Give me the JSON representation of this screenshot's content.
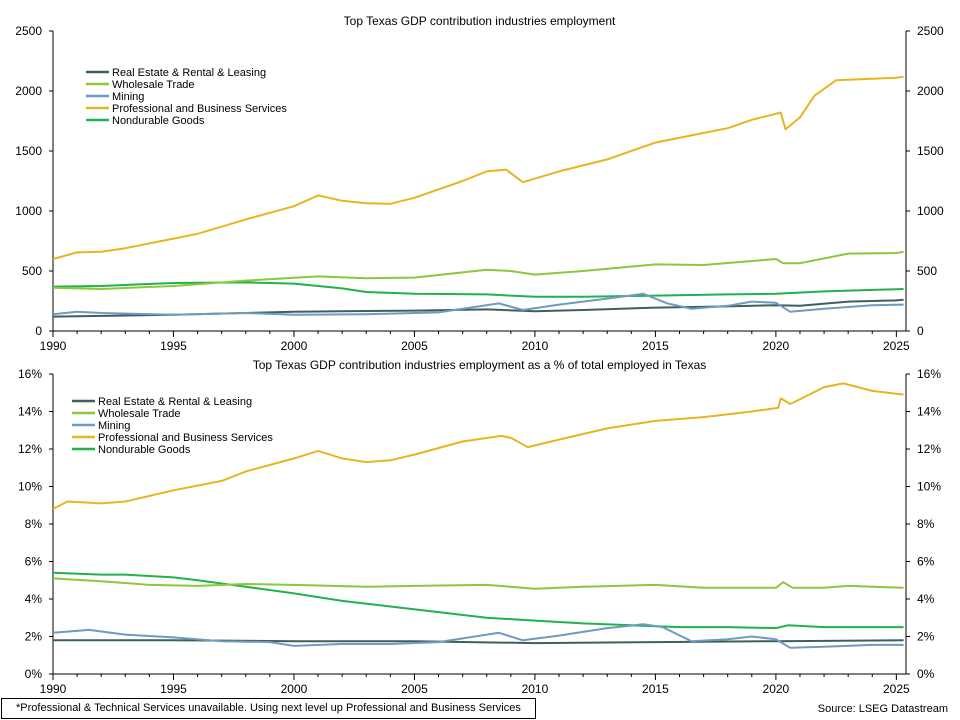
{
  "chart_data": [
    {
      "type": "line",
      "title": "Top Texas GDP contribution industries employment",
      "xlim": [
        1990,
        2025.4
      ],
      "ylim": [
        0,
        2500
      ],
      "xticks": [
        1990,
        1995,
        2000,
        2005,
        2010,
        2015,
        2020,
        2025
      ],
      "yticks": [
        0,
        500,
        1000,
        1500,
        2000,
        2500
      ],
      "ytick_labels": [
        "0",
        "500",
        "1000",
        "1500",
        "2000",
        "2500"
      ],
      "secondary_y_axis": true,
      "legend_position": "top-left",
      "grid": false,
      "series": [
        {
          "name": "Real Estate & Rental & Leasing",
          "color": "#3f5f5a",
          "points": [
            [
              1990,
              120
            ],
            [
              1995,
              135
            ],
            [
              2000,
              160
            ],
            [
              2002,
              165
            ],
            [
              2005,
              170
            ],
            [
              2008,
              180
            ],
            [
              2010,
              165
            ],
            [
              2012,
              175
            ],
            [
              2015,
              195
            ],
            [
              2018,
              205
            ],
            [
              2020,
              215
            ],
            [
              2021,
              210
            ],
            [
              2023,
              245
            ],
            [
              2025,
              255
            ],
            [
              2025.3,
              260
            ]
          ]
        },
        {
          "name": "Wholesale Trade",
          "color": "#8dc63f",
          "points": [
            [
              1990,
              360
            ],
            [
              1992,
              350
            ],
            [
              1995,
              375
            ],
            [
              1998,
              420
            ],
            [
              2001,
              455
            ],
            [
              2003,
              440
            ],
            [
              2005,
              445
            ],
            [
              2008,
              510
            ],
            [
              2009,
              500
            ],
            [
              2010,
              470
            ],
            [
              2012,
              500
            ],
            [
              2015,
              555
            ],
            [
              2017,
              550
            ],
            [
              2020,
              600
            ],
            [
              2020.3,
              565
            ],
            [
              2021,
              565
            ],
            [
              2023,
              645
            ],
            [
              2025,
              650
            ],
            [
              2025.3,
              660
            ]
          ]
        },
        {
          "name": "Mining",
          "color": "#6e9bbf",
          "points": [
            [
              1990,
              140
            ],
            [
              1991,
              160
            ],
            [
              1992,
              150
            ],
            [
              1995,
              135
            ],
            [
              1998,
              150
            ],
            [
              2000,
              135
            ],
            [
              2003,
              140
            ],
            [
              2006,
              155
            ],
            [
              2008.5,
              230
            ],
            [
              2009.5,
              175
            ],
            [
              2011,
              220
            ],
            [
              2013,
              270
            ],
            [
              2014.5,
              310
            ],
            [
              2015.5,
              230
            ],
            [
              2016.5,
              185
            ],
            [
              2018,
              210
            ],
            [
              2019,
              245
            ],
            [
              2020,
              235
            ],
            [
              2020.6,
              160
            ],
            [
              2022,
              185
            ],
            [
              2024,
              215
            ],
            [
              2025.3,
              220
            ]
          ]
        },
        {
          "name": "Professional and Business Services",
          "color": "#e8b422",
          "points": [
            [
              1990,
              600
            ],
            [
              1991,
              655
            ],
            [
              1992,
              660
            ],
            [
              1993,
              690
            ],
            [
              1995,
              770
            ],
            [
              1996,
              810
            ],
            [
              1998,
              930
            ],
            [
              2000,
              1040
            ],
            [
              2001,
              1130
            ],
            [
              2002,
              1085
            ],
            [
              2003,
              1065
            ],
            [
              2004,
              1060
            ],
            [
              2005,
              1110
            ],
            [
              2007,
              1250
            ],
            [
              2008,
              1330
            ],
            [
              2008.8,
              1345
            ],
            [
              2009.5,
              1240
            ],
            [
              2011,
              1330
            ],
            [
              2013,
              1430
            ],
            [
              2015,
              1570
            ],
            [
              2016.5,
              1630
            ],
            [
              2018,
              1690
            ],
            [
              2019,
              1760
            ],
            [
              2020.2,
              1820
            ],
            [
              2020.4,
              1680
            ],
            [
              2021,
              1780
            ],
            [
              2021.6,
              1960
            ],
            [
              2022.5,
              2090
            ],
            [
              2025,
              2110
            ],
            [
              2025.3,
              2120
            ]
          ]
        },
        {
          "name": "Nondurable Goods",
          "color": "#22b14c",
          "points": [
            [
              1990,
              370
            ],
            [
              1992,
              375
            ],
            [
              1995,
              400
            ],
            [
              1998,
              405
            ],
            [
              2000,
              395
            ],
            [
              2002,
              355
            ],
            [
              2003,
              325
            ],
            [
              2005,
              310
            ],
            [
              2008,
              305
            ],
            [
              2010,
              285
            ],
            [
              2012,
              285
            ],
            [
              2015,
              295
            ],
            [
              2018,
              305
            ],
            [
              2020,
              310
            ],
            [
              2022,
              330
            ],
            [
              2025.3,
              350
            ]
          ]
        }
      ]
    },
    {
      "type": "line",
      "title": "Top Texas GDP contribution industries employment as a % of total employed in Texas",
      "xlim": [
        1990,
        2025.4
      ],
      "ylim": [
        0,
        16
      ],
      "xticks": [
        1990,
        1995,
        2000,
        2005,
        2010,
        2015,
        2020,
        2025
      ],
      "yticks": [
        0,
        2,
        4,
        6,
        8,
        10,
        12,
        14,
        16
      ],
      "ytick_labels": [
        "0%",
        "2%",
        "4%",
        "6%",
        "8%",
        "10%",
        "12%",
        "14%",
        "16%"
      ],
      "secondary_y_axis": true,
      "legend_position": "top-left",
      "grid": false,
      "series": [
        {
          "name": "Real Estate & Rental & Leasing",
          "color": "#3f5f5a",
          "points": [
            [
              1990,
              1.8
            ],
            [
              1995,
              1.8
            ],
            [
              2000,
              1.75
            ],
            [
              2005,
              1.75
            ],
            [
              2010,
              1.65
            ],
            [
              2015,
              1.7
            ],
            [
              2020,
              1.75
            ],
            [
              2025.3,
              1.8
            ]
          ]
        },
        {
          "name": "Wholesale Trade",
          "color": "#8dc63f",
          "points": [
            [
              1990,
              5.1
            ],
            [
              1992,
              4.95
            ],
            [
              1994,
              4.75
            ],
            [
              1996,
              4.7
            ],
            [
              1998,
              4.8
            ],
            [
              2000,
              4.75
            ],
            [
              2003,
              4.65
            ],
            [
              2005,
              4.7
            ],
            [
              2008,
              4.75
            ],
            [
              2010,
              4.55
            ],
            [
              2012,
              4.65
            ],
            [
              2015,
              4.75
            ],
            [
              2017,
              4.6
            ],
            [
              2020,
              4.6
            ],
            [
              2020.3,
              4.9
            ],
            [
              2020.7,
              4.6
            ],
            [
              2022,
              4.6
            ],
            [
              2023,
              4.7
            ],
            [
              2025.3,
              4.6
            ]
          ]
        },
        {
          "name": "Mining",
          "color": "#6e9bbf",
          "points": [
            [
              1990,
              2.2
            ],
            [
              1991.5,
              2.35
            ],
            [
              1993,
              2.1
            ],
            [
              1995,
              1.95
            ],
            [
              1997,
              1.75
            ],
            [
              1999,
              1.7
            ],
            [
              2000,
              1.5
            ],
            [
              2002,
              1.6
            ],
            [
              2004,
              1.6
            ],
            [
              2006,
              1.7
            ],
            [
              2008.5,
              2.2
            ],
            [
              2009.5,
              1.8
            ],
            [
              2011,
              2.05
            ],
            [
              2013,
              2.45
            ],
            [
              2014.5,
              2.65
            ],
            [
              2015.3,
              2.5
            ],
            [
              2016.5,
              1.75
            ],
            [
              2018,
              1.85
            ],
            [
              2019,
              2.0
            ],
            [
              2020,
              1.85
            ],
            [
              2020.6,
              1.4
            ],
            [
              2022,
              1.45
            ],
            [
              2024,
              1.55
            ],
            [
              2025.3,
              1.55
            ]
          ]
        },
        {
          "name": "Professional and Business Services",
          "color": "#e8b422",
          "points": [
            [
              1990,
              8.8
            ],
            [
              1990.6,
              9.2
            ],
            [
              1992,
              9.1
            ],
            [
              1993,
              9.2
            ],
            [
              1995,
              9.8
            ],
            [
              1997,
              10.3
            ],
            [
              1998,
              10.8
            ],
            [
              2000,
              11.5
            ],
            [
              2001,
              11.9
            ],
            [
              2002,
              11.5
            ],
            [
              2003,
              11.3
            ],
            [
              2004,
              11.4
            ],
            [
              2005,
              11.7
            ],
            [
              2007,
              12.4
            ],
            [
              2008.6,
              12.7
            ],
            [
              2009,
              12.6
            ],
            [
              2009.7,
              12.1
            ],
            [
              2011,
              12.5
            ],
            [
              2013,
              13.1
            ],
            [
              2015,
              13.5
            ],
            [
              2017,
              13.7
            ],
            [
              2019,
              14.0
            ],
            [
              2020.1,
              14.2
            ],
            [
              2020.2,
              14.7
            ],
            [
              2020.6,
              14.4
            ],
            [
              2022,
              15.3
            ],
            [
              2022.8,
              15.5
            ],
            [
              2024,
              15.1
            ],
            [
              2025.3,
              14.9
            ]
          ]
        },
        {
          "name": "Nondurable Goods",
          "color": "#22b14c",
          "points": [
            [
              1990,
              5.4
            ],
            [
              1992,
              5.3
            ],
            [
              1993,
              5.3
            ],
            [
              1995,
              5.15
            ],
            [
              1996,
              5.0
            ],
            [
              1998,
              4.65
            ],
            [
              2000,
              4.3
            ],
            [
              2002,
              3.9
            ],
            [
              2004,
              3.6
            ],
            [
              2006,
              3.3
            ],
            [
              2008,
              3.0
            ],
            [
              2010,
              2.85
            ],
            [
              2012,
              2.7
            ],
            [
              2014,
              2.6
            ],
            [
              2016,
              2.5
            ],
            [
              2018,
              2.5
            ],
            [
              2020,
              2.45
            ],
            [
              2020.5,
              2.6
            ],
            [
              2022,
              2.5
            ],
            [
              2025.3,
              2.5
            ]
          ]
        }
      ]
    }
  ],
  "footnote": "*Professional & Technical Services unavailable. Using next level up Professional and Business Services",
  "source": "Source: LSEG Datastream"
}
